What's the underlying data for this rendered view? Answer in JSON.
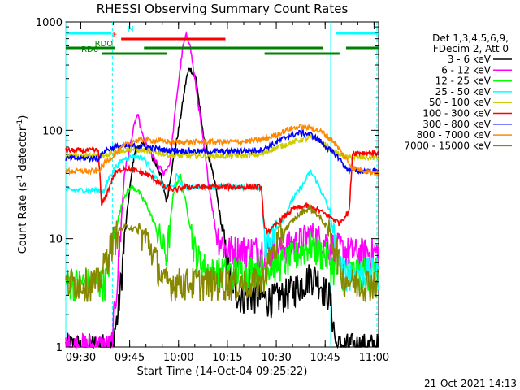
{
  "chart_data": {
    "type": "line",
    "title": "RHESSI Observing Summary Count Rates",
    "xlabel": "Start Time (14-Oct-04 09:25:22)",
    "ylabel_main": "Count Rate (s",
    "ylabel_sup1": "-1",
    "ylabel_mid": " detector",
    "ylabel_sup2": "-1",
    "ylabel_end": ")",
    "timestamp": "21-Oct-2021 14:13",
    "x_unit": "minutes since 09:25:22",
    "xlim": [
      0,
      96
    ],
    "ylim": [
      1,
      1000
    ],
    "yscale": "log",
    "x_ticks": [
      {
        "t": 4.6,
        "label": "09:30"
      },
      {
        "t": 19.6,
        "label": "09:45"
      },
      {
        "t": 34.6,
        "label": "10:00"
      },
      {
        "t": 49.6,
        "label": "10:15"
      },
      {
        "t": 64.6,
        "label": "10:30"
      },
      {
        "t": 79.6,
        "label": "10:45"
      },
      {
        "t": 94.6,
        "label": "11:00"
      }
    ],
    "y_ticks": [
      {
        "v": 1,
        "label": "1"
      },
      {
        "v": 10,
        "label": "10"
      },
      {
        "v": 100,
        "label": "100"
      },
      {
        "v": 1000,
        "label": "1000"
      }
    ],
    "legend_header": [
      "Det 1,3,4,5,6,9,",
      "FDecim 2, Att 0"
    ],
    "legend_position": "right",
    "series": [
      {
        "name": "3 - 6 keV",
        "color": "#000000",
        "points": [
          [
            0,
            1
          ],
          [
            14,
            1
          ],
          [
            16,
            2
          ],
          [
            19,
            20
          ],
          [
            21,
            60
          ],
          [
            23,
            75
          ],
          [
            25,
            70
          ],
          [
            29,
            40
          ],
          [
            31,
            22
          ],
          [
            32,
            35
          ],
          [
            35,
            120
          ],
          [
            37,
            300
          ],
          [
            38,
            380
          ],
          [
            40,
            300
          ],
          [
            42,
            100
          ],
          [
            46,
            30
          ],
          [
            48,
            12
          ],
          [
            50,
            5
          ],
          [
            53,
            3
          ],
          [
            58,
            3
          ],
          [
            62,
            2.8
          ],
          [
            66,
            3
          ],
          [
            70,
            3.5
          ],
          [
            73,
            4
          ],
          [
            75,
            4.6
          ],
          [
            77,
            4.5
          ],
          [
            79,
            3.5
          ],
          [
            81,
            3
          ],
          [
            83,
            1
          ],
          [
            96,
            1
          ]
        ]
      },
      {
        "name": "6 - 12 keV",
        "color": "#ff00ff",
        "points": [
          [
            0,
            1
          ],
          [
            14,
            1
          ],
          [
            16,
            5
          ],
          [
            18,
            40
          ],
          [
            21,
            110
          ],
          [
            22,
            140
          ],
          [
            24,
            80
          ],
          [
            27,
            55
          ],
          [
            30,
            40
          ],
          [
            32,
            50
          ],
          [
            34,
            200
          ],
          [
            36,
            600
          ],
          [
            37,
            750
          ],
          [
            38,
            650
          ],
          [
            41,
            150
          ],
          [
            44,
            30
          ],
          [
            46,
            12
          ],
          [
            49,
            8
          ],
          [
            56,
            8
          ],
          [
            64,
            8
          ],
          [
            70,
            9
          ],
          [
            73,
            10
          ],
          [
            75,
            11
          ],
          [
            78,
            10
          ],
          [
            81,
            9
          ],
          [
            85,
            8
          ],
          [
            88,
            7.5
          ],
          [
            96,
            7.5
          ]
        ]
      },
      {
        "name": "12 - 25 keV",
        "color": "#00ff00",
        "points": [
          [
            0,
            4
          ],
          [
            12,
            4
          ],
          [
            14,
            8
          ],
          [
            16,
            15
          ],
          [
            18,
            25
          ],
          [
            20,
            30
          ],
          [
            22,
            28
          ],
          [
            25,
            20
          ],
          [
            29,
            10
          ],
          [
            31,
            7
          ],
          [
            33,
            25
          ],
          [
            35,
            40
          ],
          [
            37,
            20
          ],
          [
            40,
            7
          ],
          [
            44,
            5
          ],
          [
            52,
            5
          ],
          [
            60,
            5.5
          ],
          [
            66,
            6
          ],
          [
            70,
            7
          ],
          [
            73,
            8
          ],
          [
            75,
            9
          ],
          [
            77,
            8
          ],
          [
            80,
            7
          ],
          [
            83,
            5
          ],
          [
            86,
            5
          ],
          [
            96,
            5
          ]
        ]
      },
      {
        "name": "25 - 50 keV",
        "color": "#00ffff",
        "points": [
          [
            0,
            28
          ],
          [
            12,
            28
          ],
          [
            13,
            35
          ],
          [
            15,
            45
          ],
          [
            18,
            55
          ],
          [
            21,
            58
          ],
          [
            24,
            55
          ],
          [
            26,
            45
          ],
          [
            28,
            35
          ],
          [
            30,
            30
          ],
          [
            33,
            30
          ],
          [
            34,
            38
          ],
          [
            36,
            30
          ],
          [
            44,
            30
          ],
          [
            53,
            30
          ],
          [
            58,
            30
          ],
          [
            60,
            30
          ],
          [
            61,
            10
          ],
          [
            63,
            10
          ],
          [
            66,
            14
          ],
          [
            70,
            24
          ],
          [
            73,
            32
          ],
          [
            75,
            42
          ],
          [
            77,
            34
          ],
          [
            79,
            25
          ],
          [
            81,
            18
          ],
          [
            83,
            8
          ],
          [
            85,
            5
          ],
          [
            96,
            5
          ]
        ]
      },
      {
        "name": "50 - 100 keV",
        "color": "#cccc00",
        "points": [
          [
            0,
            58
          ],
          [
            12,
            58
          ],
          [
            14,
            62
          ],
          [
            16,
            64
          ],
          [
            20,
            67
          ],
          [
            24,
            65
          ],
          [
            28,
            62
          ],
          [
            34,
            58
          ],
          [
            40,
            58
          ],
          [
            50,
            58
          ],
          [
            60,
            60
          ],
          [
            64,
            68
          ],
          [
            68,
            75
          ],
          [
            72,
            82
          ],
          [
            75,
            85
          ],
          [
            78,
            80
          ],
          [
            80,
            72
          ],
          [
            82,
            64
          ],
          [
            84,
            60
          ],
          [
            86,
            56
          ],
          [
            88,
            56
          ],
          [
            96,
            56
          ]
        ]
      },
      {
        "name": "100 - 300 keV",
        "color": "#ff0000",
        "points": [
          [
            0,
            65
          ],
          [
            10,
            65
          ],
          [
            11,
            20
          ],
          [
            13,
            28
          ],
          [
            15,
            40
          ],
          [
            18,
            45
          ],
          [
            22,
            42
          ],
          [
            26,
            38
          ],
          [
            30,
            30
          ],
          [
            34,
            28
          ],
          [
            36,
            30
          ],
          [
            40,
            30
          ],
          [
            52,
            30
          ],
          [
            60,
            30
          ],
          [
            61,
            12
          ],
          [
            63,
            12
          ],
          [
            66,
            15
          ],
          [
            70,
            19
          ],
          [
            74,
            20
          ],
          [
            78,
            18
          ],
          [
            81,
            16
          ],
          [
            84,
            14
          ],
          [
            87,
            18
          ],
          [
            88,
            62
          ],
          [
            96,
            62
          ]
        ]
      },
      {
        "name": "300 - 800 keV",
        "color": "#0000ff",
        "points": [
          [
            0,
            55
          ],
          [
            10,
            55
          ],
          [
            12,
            65
          ],
          [
            15,
            70
          ],
          [
            20,
            72
          ],
          [
            25,
            70
          ],
          [
            30,
            66
          ],
          [
            40,
            64
          ],
          [
            50,
            64
          ],
          [
            60,
            66
          ],
          [
            64,
            75
          ],
          [
            68,
            88
          ],
          [
            72,
            95
          ],
          [
            75,
            92
          ],
          [
            78,
            80
          ],
          [
            81,
            66
          ],
          [
            84,
            55
          ],
          [
            86,
            44
          ],
          [
            89,
            42
          ],
          [
            96,
            42
          ]
        ]
      },
      {
        "name": "800 - 7000 keV",
        "color": "#ff8800",
        "points": [
          [
            0,
            42
          ],
          [
            10,
            42
          ],
          [
            12,
            50
          ],
          [
            15,
            60
          ],
          [
            18,
            72
          ],
          [
            21,
            80
          ],
          [
            24,
            82
          ],
          [
            28,
            80
          ],
          [
            34,
            78
          ],
          [
            40,
            78
          ],
          [
            50,
            78
          ],
          [
            58,
            80
          ],
          [
            62,
            85
          ],
          [
            65,
            92
          ],
          [
            68,
            102
          ],
          [
            72,
            108
          ],
          [
            76,
            104
          ],
          [
            79,
            95
          ],
          [
            82,
            80
          ],
          [
            85,
            60
          ],
          [
            88,
            45
          ],
          [
            96,
            40
          ]
        ]
      },
      {
        "name": "7000 - 15000 keV",
        "color": "#888800",
        "points": [
          [
            0,
            4
          ],
          [
            10,
            4
          ],
          [
            12,
            6
          ],
          [
            14,
            9
          ],
          [
            16,
            12
          ],
          [
            19,
            13
          ],
          [
            22,
            12
          ],
          [
            25,
            10
          ],
          [
            28,
            6
          ],
          [
            30,
            4
          ],
          [
            34,
            4
          ],
          [
            40,
            4
          ],
          [
            48,
            4
          ],
          [
            54,
            4
          ],
          [
            60,
            4
          ],
          [
            62,
            6
          ],
          [
            64,
            8
          ],
          [
            66,
            11
          ],
          [
            70,
            15
          ],
          [
            73,
            18
          ],
          [
            75,
            19
          ],
          [
            77,
            17
          ],
          [
            80,
            13
          ],
          [
            83,
            8
          ],
          [
            85,
            4.5
          ],
          [
            88,
            4
          ],
          [
            96,
            4
          ]
        ]
      }
    ],
    "flag_bars": [
      {
        "label": "N",
        "color": "#00ffff",
        "level": "top",
        "segments": [
          [
            0,
            14
          ],
          [
            83,
            96
          ]
        ]
      },
      {
        "label": "F",
        "color": "#ff0000",
        "level": "upper",
        "segments": [
          [
            17,
            49
          ]
        ]
      },
      {
        "label": "RDO",
        "color": "#008000",
        "level": "middle",
        "segments": [
          [
            0,
            15
          ],
          [
            24,
            79
          ],
          [
            86,
            96
          ]
        ]
      },
      {
        "label": "RD6",
        "color": "#008000",
        "level": "lower",
        "segments": [
          [
            11,
            31
          ],
          [
            61,
            84
          ]
        ]
      }
    ],
    "vertical_lines": [
      {
        "t": 0,
        "color": "#00ffff",
        "style": "solid"
      },
      {
        "t": 14.3,
        "color": "#00ffff",
        "style": "dashed"
      },
      {
        "t": 81.3,
        "color": "#00ffff",
        "style": "solid"
      },
      {
        "t": 95.5,
        "color": "#00ffff",
        "style": "dashed"
      }
    ]
  }
}
